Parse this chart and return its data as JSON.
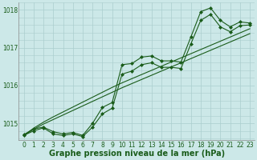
{
  "title": "",
  "xlabel": "Graphe pression niveau de la mer (hPa)",
  "bg_color": "#cce8e8",
  "grid_color": "#aacece",
  "line_color": "#1a5c1a",
  "xlim": [
    -0.5,
    23.5
  ],
  "ylim": [
    1014.55,
    1018.2
  ],
  "yticks": [
    1015,
    1016,
    1017,
    1018
  ],
  "xticks": [
    0,
    1,
    2,
    3,
    4,
    5,
    6,
    7,
    8,
    9,
    10,
    11,
    12,
    13,
    14,
    15,
    16,
    17,
    18,
    19,
    20,
    21,
    22,
    23
  ],
  "series": {
    "main": [
      1014.7,
      1014.85,
      1014.9,
      1014.78,
      1014.72,
      1014.76,
      1014.68,
      1015.0,
      1015.42,
      1015.55,
      1016.55,
      1016.58,
      1016.75,
      1016.78,
      1016.65,
      1016.65,
      1016.62,
      1017.28,
      1017.95,
      1018.05,
      1017.72,
      1017.55,
      1017.68,
      1017.65
    ],
    "smooth1": [
      1014.68,
      1014.8,
      1014.88,
      1014.72,
      1014.68,
      1014.72,
      1014.65,
      1014.9,
      1015.25,
      1015.4,
      1016.3,
      1016.38,
      1016.55,
      1016.6,
      1016.48,
      1016.48,
      1016.45,
      1017.1,
      1017.72,
      1017.88,
      1017.55,
      1017.42,
      1017.58,
      1017.6
    ],
    "trend1": [
      1014.68,
      1014.87,
      1015.03,
      1015.17,
      1015.3,
      1015.43,
      1015.56,
      1015.69,
      1015.82,
      1015.95,
      1016.07,
      1016.18,
      1016.29,
      1016.4,
      1016.51,
      1016.62,
      1016.73,
      1016.84,
      1016.95,
      1017.06,
      1017.17,
      1017.28,
      1017.39,
      1017.5
    ],
    "trend2": [
      1014.68,
      1014.84,
      1014.98,
      1015.1,
      1015.22,
      1015.34,
      1015.46,
      1015.58,
      1015.7,
      1015.82,
      1015.94,
      1016.05,
      1016.16,
      1016.27,
      1016.38,
      1016.49,
      1016.6,
      1016.71,
      1016.82,
      1016.93,
      1017.04,
      1017.15,
      1017.26,
      1017.37
    ]
  },
  "xlabel_fontsize": 7,
  "tick_fontsize": 5.5,
  "xlabel_color": "#1a5c1a",
  "tick_color": "#1a5c1a",
  "marker": "D",
  "marker_size": 2.0,
  "linewidth": 0.8
}
